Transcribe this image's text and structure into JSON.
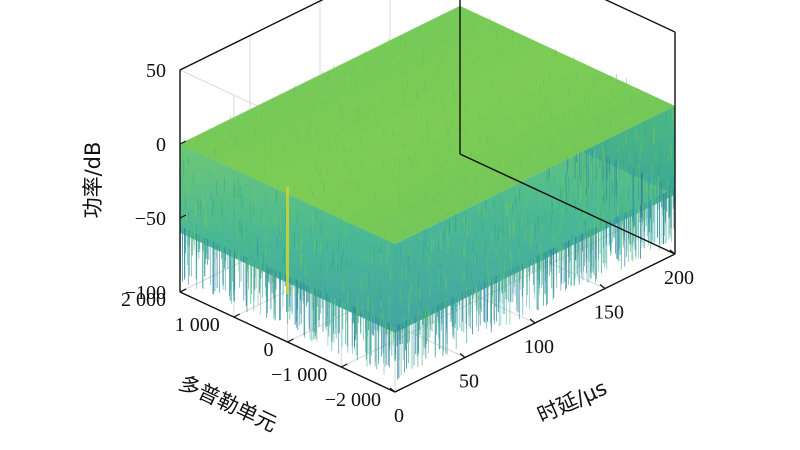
{
  "chart_data": {
    "type": "surface-3d",
    "zlabel": "功率/dB",
    "xlabel": "时延/μs",
    "ylabel": "多普勒单元",
    "z_ticks": [
      "50",
      "0",
      "−50",
      "−100"
    ],
    "z_tick_values": [
      50,
      0,
      -50,
      -100
    ],
    "zlim": [
      -100,
      50
    ],
    "x_ticks": [
      "0",
      "50",
      "100",
      "150",
      "200"
    ],
    "x_tick_values": [
      0,
      50,
      100,
      150,
      200
    ],
    "xlim": [
      0,
      200
    ],
    "y_ticks": [
      "2 000",
      "1 000",
      "0",
      "−1 000",
      "−2 000"
    ],
    "y_tick_values": [
      2000,
      1000,
      0,
      -1000,
      -2000
    ],
    "ylim": [
      -2000,
      2000
    ],
    "surface": {
      "x_extent": [
        0,
        200
      ],
      "y_extent": [
        -2000,
        2000
      ],
      "top_level_db": 0,
      "floor_noise_db": -60,
      "peak": {
        "delay_us": 0,
        "doppler": 0,
        "power_db": 5
      }
    },
    "colormap": "viridis",
    "grid": true
  }
}
